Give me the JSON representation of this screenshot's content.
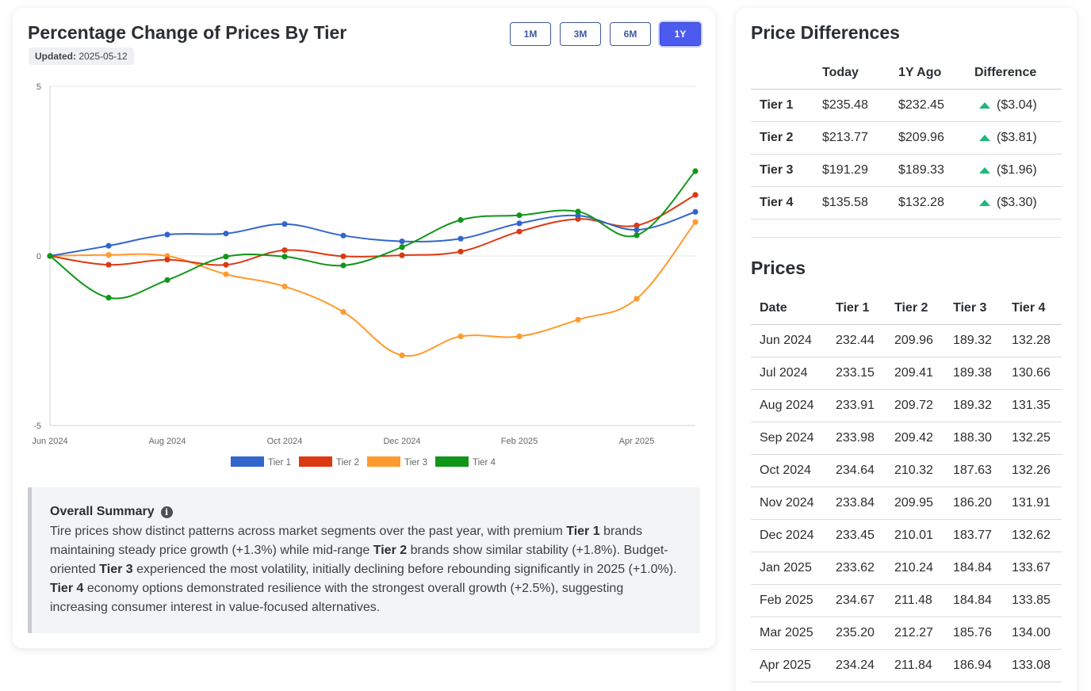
{
  "chart_card": {
    "title": "Percentage Change of Prices By Tier",
    "updated_label": "Updated:",
    "updated_value": "2025-05-12",
    "range_buttons": [
      "1M",
      "3M",
      "6M",
      "1Y"
    ],
    "active_range": "1Y"
  },
  "chart_data": {
    "type": "line",
    "title": "Percentage Change of Prices By Tier",
    "x": [
      "Jun 2024",
      "Jul 2024",
      "Aug 2024",
      "Sep 2024",
      "Oct 2024",
      "Nov 2024",
      "Dec 2024",
      "Jan 2025",
      "Feb 2025",
      "Mar 2025",
      "Apr 2025",
      "May 2025"
    ],
    "x_tick_labels": [
      "Jun 2024",
      "Aug 2024",
      "Oct 2024",
      "Dec 2024",
      "Feb 2025",
      "Apr 2025"
    ],
    "y_tick_labels": [
      "5",
      "0",
      "-5"
    ],
    "ylim": [
      -5,
      5
    ],
    "grid": true,
    "legend_position": "bottom",
    "series": [
      {
        "name": "Tier 1",
        "color": "#3366cc",
        "values": [
          0,
          0.3,
          0.63,
          0.66,
          0.94,
          0.6,
          0.43,
          0.51,
          0.96,
          1.19,
          0.77,
          1.3
        ]
      },
      {
        "name": "Tier 2",
        "color": "#dc3912",
        "values": [
          0,
          -0.26,
          -0.11,
          -0.26,
          0.17,
          -0.01,
          0.02,
          0.13,
          0.72,
          1.09,
          0.9,
          1.8
        ]
      },
      {
        "name": "Tier 3",
        "color": "#ff9a2e",
        "values": [
          0,
          0.03,
          0,
          -0.54,
          -0.9,
          -1.65,
          -2.93,
          -2.37,
          -2.37,
          -1.88,
          -1.26,
          1.0
        ]
      },
      {
        "name": "Tier 4",
        "color": "#109618",
        "values": [
          0,
          -1.23,
          -0.71,
          -0.02,
          -0.02,
          -0.28,
          0.26,
          1.06,
          1.2,
          1.31,
          0.61,
          2.5
        ]
      }
    ]
  },
  "summary": {
    "heading": "Overall Summary",
    "p1": "Tire prices show distinct patterns across market segments over the past year, with premium ",
    "b1": "Tier 1",
    "p2": " brands maintaining steady price growth (+1.3%) while mid-range ",
    "b2": "Tier 2",
    "p3": " brands show similar stability (+1.8%). Budget-oriented ",
    "b3": "Tier 3",
    "p4": " experienced the most volatility, initially declining before rebounding significantly in 2025 (+1.0%). ",
    "b4": "Tier 4",
    "p5": " economy options demonstrated resilience with the strongest overall growth (+2.5%), suggesting increasing consumer interest in value-focused alternatives."
  },
  "price_differences": {
    "title": "Price Differences",
    "headers": [
      "",
      "Today",
      "1Y Ago",
      "Difference"
    ],
    "rows": [
      {
        "tier": "Tier 1",
        "today": "$235.48",
        "ago": "$232.45",
        "diff": "($3.04)"
      },
      {
        "tier": "Tier 2",
        "today": "$213.77",
        "ago": "$209.96",
        "diff": "($3.81)"
      },
      {
        "tier": "Tier 3",
        "today": "$191.29",
        "ago": "$189.33",
        "diff": "($1.96)"
      },
      {
        "tier": "Tier 4",
        "today": "$135.58",
        "ago": "$132.28",
        "diff": "($3.30)"
      }
    ],
    "trend_icon": "triangle-up-icon",
    "trend_color": "#1db97a"
  },
  "prices": {
    "title": "Prices",
    "headers": [
      "Date",
      "Tier 1",
      "Tier 2",
      "Tier 3",
      "Tier 4"
    ],
    "rows": [
      [
        "Jun 2024",
        "232.44",
        "209.96",
        "189.32",
        "132.28"
      ],
      [
        "Jul 2024",
        "233.15",
        "209.41",
        "189.38",
        "130.66"
      ],
      [
        "Aug 2024",
        "233.91",
        "209.72",
        "189.32",
        "131.35"
      ],
      [
        "Sep 2024",
        "233.98",
        "209.42",
        "188.30",
        "132.25"
      ],
      [
        "Oct 2024",
        "234.64",
        "210.32",
        "187.63",
        "132.26"
      ],
      [
        "Nov 2024",
        "233.84",
        "209.95",
        "186.20",
        "131.91"
      ],
      [
        "Dec 2024",
        "233.45",
        "210.01",
        "183.77",
        "132.62"
      ],
      [
        "Jan 2025",
        "233.62",
        "210.24",
        "184.84",
        "133.67"
      ],
      [
        "Feb 2025",
        "234.67",
        "211.48",
        "184.84",
        "133.85"
      ],
      [
        "Mar 2025",
        "235.20",
        "212.27",
        "185.76",
        "134.00"
      ],
      [
        "Apr 2025",
        "234.24",
        "211.84",
        "186.94",
        "133.08"
      ]
    ]
  }
}
